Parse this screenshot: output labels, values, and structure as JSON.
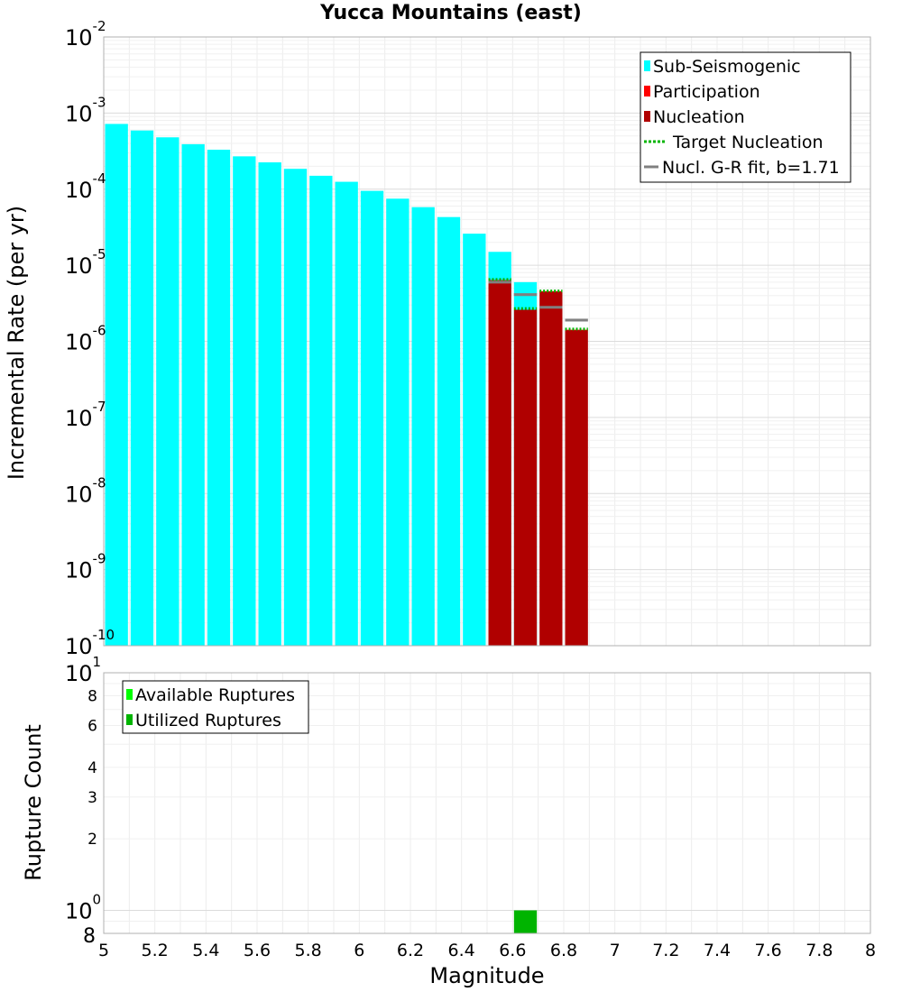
{
  "title": "Yucca Mountains (east)",
  "chart_data": [
    {
      "type": "bar",
      "ylabel": "Incremental Rate (per yr)",
      "xlim": [
        5,
        8
      ],
      "ylim": [
        1e-10,
        0.01
      ],
      "y_scale": "log",
      "grid": true,
      "y_ticks": [
        {
          "value": 0.01,
          "base": "10",
          "exp": "-2"
        },
        {
          "value": 0.001,
          "base": "10",
          "exp": "-3"
        },
        {
          "value": 0.0001,
          "base": "10",
          "exp": "-4"
        },
        {
          "value": 1e-05,
          "base": "10",
          "exp": "-5"
        },
        {
          "value": 1e-06,
          "base": "10",
          "exp": "-6"
        },
        {
          "value": 1e-07,
          "base": "10",
          "exp": "-7"
        },
        {
          "value": 1e-08,
          "base": "10",
          "exp": "-8"
        },
        {
          "value": 1e-09,
          "base": "10",
          "exp": "-9"
        },
        {
          "value": 1e-10,
          "base": "10",
          "exp": "-10"
        }
      ],
      "legend_position": "top-right",
      "legend": [
        {
          "label": "Sub-Seismogenic",
          "color": "#00ffff",
          "style": "box"
        },
        {
          "label": "Participation",
          "color": "#ff0000",
          "style": "box"
        },
        {
          "label": "Nucleation",
          "color": "#b00000",
          "style": "box"
        },
        {
          "label": "Target Nucleation",
          "color": "#00b400",
          "style": "dotted"
        },
        {
          "label": "Nucl. G-R fit, b=1.71",
          "color": "#808080",
          "style": "line"
        }
      ],
      "series": [
        {
          "name": "Sub-Seismogenic",
          "color": "#00ffff",
          "x": [
            5.05,
            5.15,
            5.25,
            5.35,
            5.45,
            5.55,
            5.65,
            5.75,
            5.85,
            5.95,
            6.05,
            6.15,
            6.25,
            6.35,
            6.45,
            6.55,
            6.65
          ],
          "values": [
            0.00072,
            0.00059,
            0.00048,
            0.00039,
            0.00033,
            0.00027,
            0.000225,
            0.000185,
            0.00015,
            0.000125,
            9.5e-05,
            7.5e-05,
            5.8e-05,
            4.3e-05,
            2.6e-05,
            1.5e-05,
            6e-06
          ]
        },
        {
          "name": "Participation",
          "color": "#ff0000",
          "x": [
            6.55,
            6.65,
            6.75,
            6.85
          ],
          "values": [
            6.3e-06,
            4.2e-06,
            4.5e-06,
            1.4e-06
          ]
        },
        {
          "name": "Nucleation",
          "color": "#b00000",
          "x": [
            6.55,
            6.65,
            6.75,
            6.85
          ],
          "values": [
            6.3e-06,
            2.6e-06,
            4.5e-06,
            1.4e-06
          ]
        },
        {
          "name": "Target Nucleation",
          "color": "#00b400",
          "x": [
            6.55,
            6.65,
            6.75,
            6.85
          ],
          "values": [
            6.5e-06,
            2.7e-06,
            4.6e-06,
            1.45e-06
          ]
        },
        {
          "name": "Nucl. G-R fit, b=1.71",
          "color": "#808080",
          "x": [
            6.55,
            6.65,
            6.75,
            6.85
          ],
          "values": [
            6e-06,
            4.1e-06,
            2.8e-06,
            1.9e-06
          ]
        }
      ]
    },
    {
      "type": "bar",
      "xlabel": "Magnitude",
      "ylabel": "Rupture Count",
      "xlim": [
        5,
        8
      ],
      "ylim": [
        0.8,
        10
      ],
      "y_scale": "log",
      "grid": true,
      "x_ticks": [
        "5",
        "5.2",
        "5.4",
        "5.6",
        "5.8",
        "6",
        "6.2",
        "6.4",
        "6.6",
        "6.8",
        "7",
        "7.2",
        "7.4",
        "7.6",
        "7.8",
        "8"
      ],
      "y_ticks": [
        {
          "value": 10,
          "base": "10",
          "exp": "1",
          "size": "major"
        },
        {
          "value": 8,
          "label": "8",
          "size": "minor"
        },
        {
          "value": 6,
          "label": "6",
          "size": "minor"
        },
        {
          "value": 4,
          "label": "4",
          "size": "minor"
        },
        {
          "value": 3,
          "label": "3",
          "size": "minor"
        },
        {
          "value": 2,
          "label": "2",
          "size": "minor"
        },
        {
          "value": 1,
          "base": "10",
          "exp": "0",
          "size": "major"
        },
        {
          "value": 0.8,
          "label": "8",
          "size": "major"
        }
      ],
      "legend_position": "top-left",
      "legend": [
        {
          "label": "Available Ruptures",
          "color": "#00ff00",
          "style": "box"
        },
        {
          "label": "Utilized Ruptures",
          "color": "#00b400",
          "style": "box"
        }
      ],
      "series": [
        {
          "name": "Available Ruptures",
          "color": "#00ff00",
          "x": [
            6.65
          ],
          "values": [
            1
          ]
        },
        {
          "name": "Utilized Ruptures",
          "color": "#00b400",
          "x": [
            6.65
          ],
          "values": [
            1
          ]
        }
      ]
    }
  ]
}
